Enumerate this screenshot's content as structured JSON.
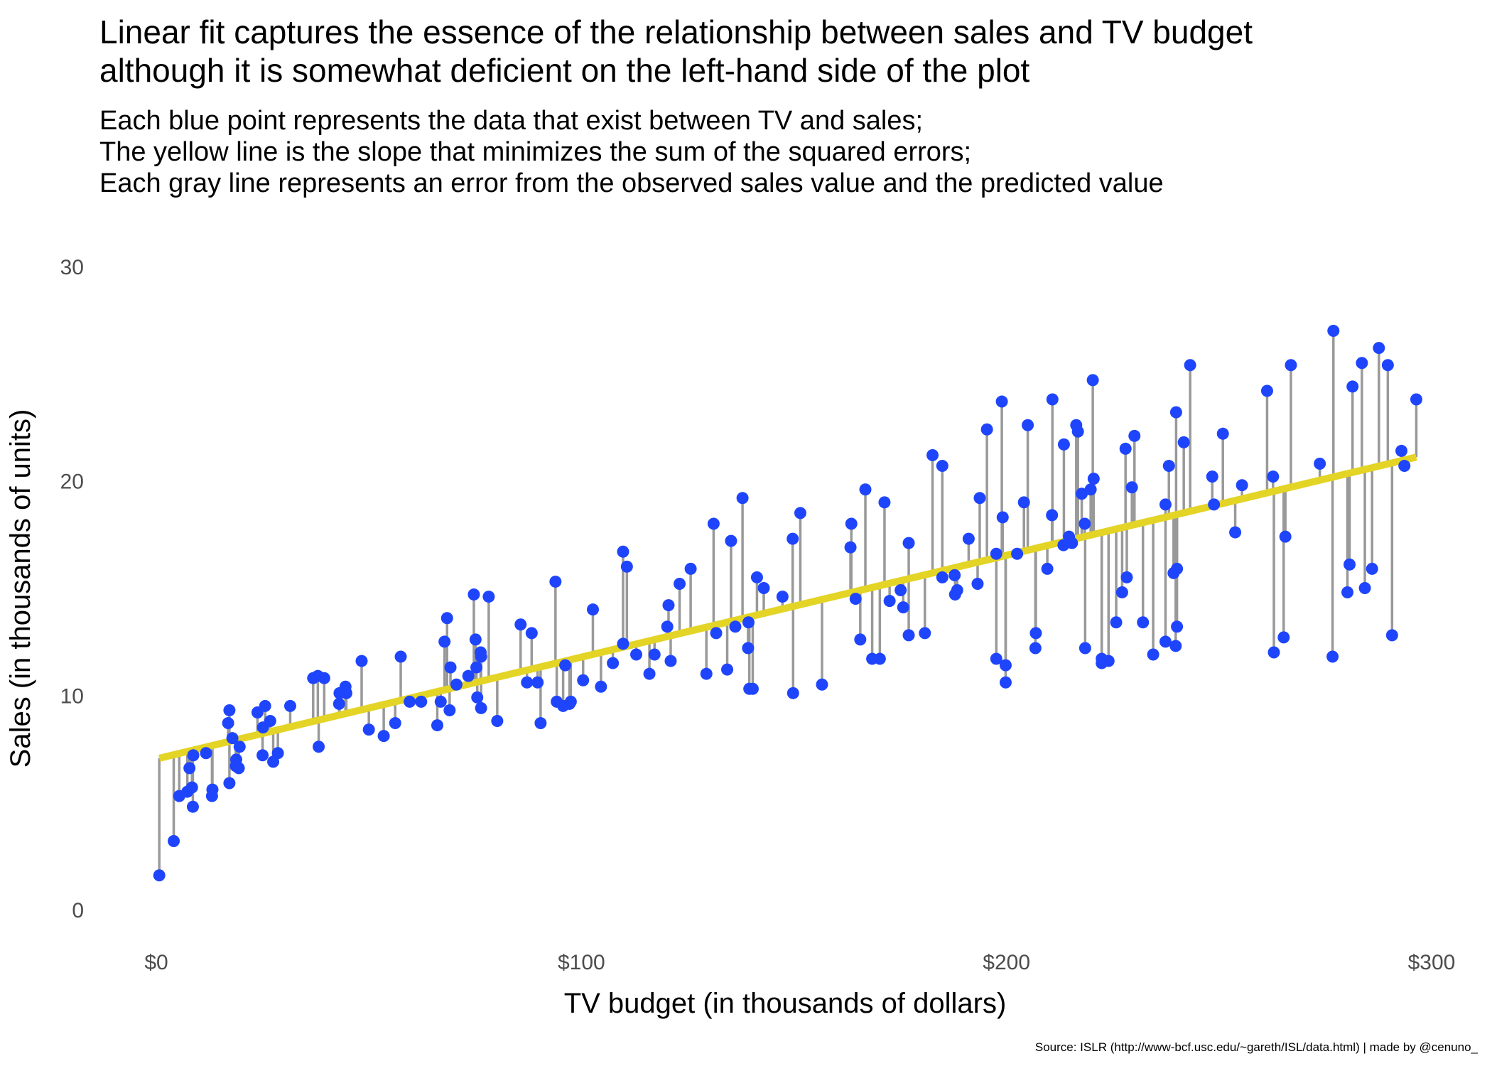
{
  "title_lines": [
    "Linear fit captures the essence of the relationship between sales and TV budget",
    "although it is somewhat deficient on the left-hand side of the plot"
  ],
  "subtitle_lines": [
    "Each blue point represents the data that exist between TV and sales;",
    "The yellow line is the slope that minimizes the sum of the squared errors;",
    "Each gray line represents an error from the observed sales value and the predicted value"
  ],
  "caption": "Source: ISLR (http://www-bcf.usc.edu/~gareth/ISL/data.html) | made by @cenuno_",
  "colors": {
    "point": "#1f45fc",
    "fit_line": "#e3d426",
    "residual": "#999999",
    "tick_text": "#4d4d4d"
  },
  "chart_data": {
    "type": "scatter",
    "xlabel": "TV budget (in thousands of dollars)",
    "ylabel": "Sales (in thousands of units)",
    "xlim": [
      0,
      300
    ],
    "ylim": [
      0,
      30
    ],
    "x_ticks": [
      0,
      100,
      200,
      300
    ],
    "x_tick_labels": [
      "$0",
      "$100",
      "$200",
      "$300"
    ],
    "y_ticks": [
      0,
      10,
      20,
      30
    ],
    "y_tick_labels": [
      "0",
      "10",
      "20",
      "30"
    ],
    "grid": false,
    "fit": {
      "intercept": 7.03,
      "slope": 0.0475,
      "x_range": [
        0.7,
        296.4
      ]
    },
    "points": [
      [
        230.1,
        22.1
      ],
      [
        44.5,
        10.4
      ],
      [
        17.2,
        9.3
      ],
      [
        151.5,
        18.5
      ],
      [
        180.8,
        12.9
      ],
      [
        8.7,
        7.2
      ],
      [
        57.5,
        11.8
      ],
      [
        120.2,
        13.2
      ],
      [
        8.6,
        4.8
      ],
      [
        199.8,
        10.6
      ],
      [
        66.1,
        8.6
      ],
      [
        214.7,
        17.4
      ],
      [
        23.8,
        9.2
      ],
      [
        97.5,
        9.7
      ],
      [
        204.1,
        19.0
      ],
      [
        195.4,
        22.4
      ],
      [
        67.8,
        12.5
      ],
      [
        281.4,
        24.4
      ],
      [
        69.2,
        11.3
      ],
      [
        147.3,
        14.6
      ],
      [
        218.4,
        18.0
      ],
      [
        237.4,
        12.5
      ],
      [
        13.2,
        5.6
      ],
      [
        228.3,
        15.5
      ],
      [
        62.3,
        9.7
      ],
      [
        262.9,
        12.0
      ],
      [
        142.9,
        15.0
      ],
      [
        240.1,
        15.9
      ],
      [
        248.8,
        18.9
      ],
      [
        70.6,
        10.5
      ],
      [
        292.9,
        21.4
      ],
      [
        112.9,
        11.9
      ],
      [
        97.2,
        9.6
      ],
      [
        265.6,
        17.4
      ],
      [
        95.7,
        9.5
      ],
      [
        290.7,
        12.8
      ],
      [
        266.9,
        25.4
      ],
      [
        74.7,
        14.7
      ],
      [
        43.1,
        10.1
      ],
      [
        228.0,
        21.5
      ],
      [
        202.5,
        16.6
      ],
      [
        177.0,
        17.1
      ],
      [
        293.6,
        20.7
      ],
      [
        206.9,
        12.9
      ],
      [
        25.1,
        8.5
      ],
      [
        175.1,
        14.9
      ],
      [
        89.7,
        10.6
      ],
      [
        239.9,
        23.2
      ],
      [
        227.2,
        14.8
      ],
      [
        66.9,
        9.7
      ],
      [
        199.8,
        11.4
      ],
      [
        100.4,
        10.7
      ],
      [
        216.4,
        22.6
      ],
      [
        182.6,
        21.2
      ],
      [
        262.7,
        20.2
      ],
      [
        198.9,
        23.7
      ],
      [
        7.3,
        5.5
      ],
      [
        136.2,
        13.2
      ],
      [
        210.8,
        23.8
      ],
      [
        210.7,
        18.4
      ],
      [
        53.5,
        8.1
      ],
      [
        261.3,
        24.2
      ],
      [
        239.3,
        15.7
      ],
      [
        102.7,
        14.0
      ],
      [
        131.1,
        18.0
      ],
      [
        69.0,
        9.3
      ],
      [
        31.5,
        9.5
      ],
      [
        139.3,
        13.4
      ],
      [
        237.4,
        18.9
      ],
      [
        216.8,
        22.3
      ],
      [
        199.1,
        18.3
      ],
      [
        109.8,
        12.4
      ],
      [
        26.8,
        8.8
      ],
      [
        129.4,
        11.0
      ],
      [
        213.4,
        17.0
      ],
      [
        16.9,
        8.7
      ],
      [
        27.5,
        6.9
      ],
      [
        120.5,
        14.2
      ],
      [
        5.4,
        5.3
      ],
      [
        116.0,
        11.0
      ],
      [
        76.4,
        11.8
      ],
      [
        239.8,
        12.3
      ],
      [
        75.3,
        11.3
      ],
      [
        68.4,
        13.6
      ],
      [
        213.5,
        21.7
      ],
      [
        193.2,
        15.2
      ],
      [
        76.3,
        12.0
      ],
      [
        110.7,
        16.0
      ],
      [
        88.3,
        12.9
      ],
      [
        109.8,
        16.7
      ],
      [
        134.3,
        11.2
      ],
      [
        28.6,
        7.3
      ],
      [
        217.7,
        19.4
      ],
      [
        250.9,
        22.2
      ],
      [
        107.4,
        11.5
      ],
      [
        163.3,
        16.9
      ],
      [
        197.6,
        11.7
      ],
      [
        184.9,
        15.5
      ],
      [
        289.7,
        25.4
      ],
      [
        135.2,
        17.2
      ],
      [
        222.4,
        11.7
      ],
      [
        296.4,
        23.8
      ],
      [
        280.2,
        14.8
      ],
      [
        187.9,
        14.7
      ],
      [
        238.2,
        20.7
      ],
      [
        137.9,
        19.2
      ],
      [
        25.0,
        7.2
      ],
      [
        90.4,
        8.7
      ],
      [
        13.1,
        5.3
      ],
      [
        255.4,
        19.8
      ],
      [
        225.8,
        13.4
      ],
      [
        241.7,
        21.8
      ],
      [
        175.7,
        14.1
      ],
      [
        209.6,
        15.9
      ],
      [
        78.2,
        14.6
      ],
      [
        75.1,
        12.6
      ],
      [
        139.2,
        12.2
      ],
      [
        76.4,
        9.4
      ],
      [
        125.7,
        15.9
      ],
      [
        19.4,
        6.6
      ],
      [
        141.3,
        15.5
      ],
      [
        18.8,
        7.0
      ],
      [
        224.0,
        11.6
      ],
      [
        123.1,
        15.2
      ],
      [
        229.5,
        19.7
      ],
      [
        87.2,
        10.6
      ],
      [
        7.8,
        6.6
      ],
      [
        80.2,
        8.8
      ],
      [
        220.3,
        24.7
      ],
      [
        59.6,
        9.7
      ],
      [
        0.7,
        1.6
      ],
      [
        265.2,
        12.7
      ],
      [
        8.4,
        5.7
      ],
      [
        219.8,
        19.6
      ],
      [
        36.9,
        10.8
      ],
      [
        48.3,
        11.6
      ],
      [
        25.6,
        9.5
      ],
      [
        273.7,
        20.8
      ],
      [
        43.0,
        9.6
      ],
      [
        184.9,
        20.7
      ],
      [
        73.4,
        10.9
      ],
      [
        193.7,
        19.2
      ],
      [
        220.5,
        20.1
      ],
      [
        104.6,
        10.4
      ],
      [
        96.2,
        11.4
      ],
      [
        140.3,
        10.3
      ],
      [
        240.1,
        13.2
      ],
      [
        243.2,
        25.4
      ],
      [
        38.0,
        10.9
      ],
      [
        44.7,
        10.1
      ],
      [
        280.7,
        16.1
      ],
      [
        121.0,
        11.6
      ],
      [
        197.6,
        16.6
      ],
      [
        171.3,
        19.0
      ],
      [
        187.8,
        15.6
      ],
      [
        4.1,
        3.2
      ],
      [
        93.9,
        15.3
      ],
      [
        149.8,
        10.1
      ],
      [
        11.7,
        7.3
      ],
      [
        131.7,
        12.9
      ],
      [
        172.5,
        14.4
      ],
      [
        85.7,
        13.3
      ],
      [
        188.4,
        14.9
      ],
      [
        163.5,
        18.0
      ],
      [
        117.2,
        11.9
      ],
      [
        234.5,
        11.9
      ],
      [
        17.9,
        8.0
      ],
      [
        206.8,
        12.2
      ],
      [
        215.4,
        17.1
      ],
      [
        284.3,
        15.0
      ],
      [
        50.0,
        8.4
      ],
      [
        164.5,
        14.5
      ],
      [
        19.6,
        7.6
      ],
      [
        168.4,
        11.7
      ],
      [
        222.4,
        11.5
      ],
      [
        276.9,
        27.0
      ],
      [
        248.4,
        20.2
      ],
      [
        170.2,
        11.7
      ],
      [
        276.7,
        11.8
      ],
      [
        165.6,
        12.6
      ],
      [
        156.6,
        10.5
      ],
      [
        218.5,
        12.2
      ],
      [
        56.2,
        8.7
      ],
      [
        287.6,
        26.2
      ],
      [
        253.8,
        17.6
      ],
      [
        205.0,
        22.6
      ],
      [
        139.5,
        10.3
      ],
      [
        191.1,
        17.3
      ],
      [
        286.0,
        15.9
      ],
      [
        18.7,
        6.7
      ],
      [
        39.5,
        10.8
      ],
      [
        75.5,
        9.9
      ],
      [
        17.2,
        5.9
      ],
      [
        166.8,
        19.6
      ],
      [
        149.7,
        17.3
      ],
      [
        38.2,
        7.6
      ],
      [
        94.2,
        9.7
      ],
      [
        177.0,
        12.8
      ],
      [
        283.6,
        25.5
      ],
      [
        232.1,
        13.4
      ]
    ]
  }
}
